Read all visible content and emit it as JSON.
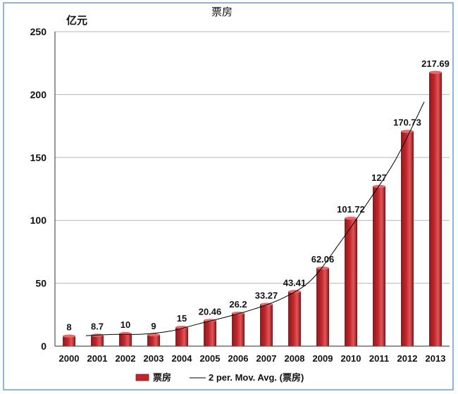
{
  "chart_data": {
    "type": "bar",
    "title": "票房",
    "ylabel": "亿元",
    "xlabel": "",
    "ylim": [
      0,
      250
    ],
    "yticks": [
      0,
      50,
      100,
      150,
      200,
      250
    ],
    "grid": true,
    "categories": [
      "2000",
      "2001",
      "2002",
      "2003",
      "2004",
      "2005",
      "2006",
      "2007",
      "2008",
      "2009",
      "2010",
      "2011",
      "2012",
      "2013"
    ],
    "series": [
      {
        "name": "票房",
        "color": "#c0262b",
        "values": [
          8,
          8.7,
          10,
          9,
          15,
          20.46,
          26.2,
          33.27,
          43.41,
          62.06,
          101.72,
          127,
          170.73,
          217.69
        ],
        "labels": [
          "8",
          "8.7",
          "10",
          "9",
          "15",
          "20.46",
          "26.2",
          "33.27",
          "43.41",
          "62.06",
          "101.72",
          "127",
          "170.73",
          "217.69"
        ]
      }
    ],
    "trendline": {
      "name": "2 per. Mov. Avg. (票房)",
      "type": "moving-average",
      "period": 2,
      "color": "#000000"
    },
    "legend": {
      "position": "bottom",
      "items": [
        "票房",
        "2 per. Mov. Avg. (票房)"
      ]
    }
  }
}
